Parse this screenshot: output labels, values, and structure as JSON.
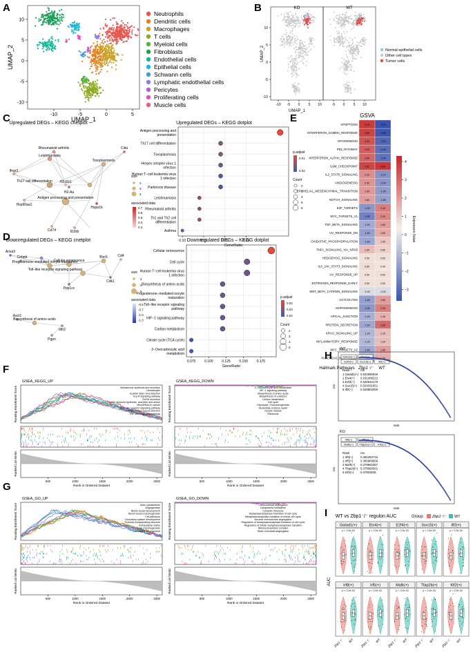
{
  "panel_letters": {
    "A": "A",
    "B": "B",
    "C": "C",
    "D": "D",
    "E": "E",
    "F": "F",
    "G": "G",
    "H": "H",
    "I": "I"
  },
  "colors": {
    "neutrophils": "#E8544E",
    "dendritic": "#E67E22",
    "macrophages": "#C9A227",
    "t_cells": "#8BAA1E",
    "myeloid": "#55B23A",
    "fibroblasts": "#1FA05A",
    "endothelial": "#16B39A",
    "epithelial": "#1AB8D8",
    "schwann": "#3A9BE0",
    "lymphatic": "#8B7FE0",
    "pericytes": "#B05CDC",
    "proliferating": "#E054B8",
    "muscle": "#E65C8C",
    "tumor": "#E04848",
    "other": "#C8C8C8",
    "normal_epi": "#7FC8E8",
    "rank_points": "#2B3FA8",
    "ko": "#E8776E",
    "wt": "#3DBDB0"
  },
  "panel_a": {
    "xlabel": "UMAP_1",
    "ylabel": "UMAP_2",
    "xticks": [
      "-10",
      "-5",
      "0",
      "5"
    ],
    "yticks": [
      "-10",
      "-5",
      "0",
      "5",
      "10"
    ],
    "legend": [
      "Neutrophils",
      "Dendritic cells",
      "Macrophages",
      "T cells",
      "Myeloid cells",
      "Fibroblasts",
      "Endothelial cells",
      "Epithelial cells",
      "Schwann cells",
      "Lymphatic endothelial cells",
      "Pericytes",
      "Proliferating cells",
      "Muscle cells"
    ]
  },
  "panel_b": {
    "titles": [
      "KO",
      "WT"
    ],
    "xlabel": "UMAP_1",
    "ylabel": "UMAP_2",
    "xticks": [
      "-10",
      "-5",
      "0",
      "5",
      "10",
      "-5",
      "0",
      "5",
      "10"
    ],
    "yticks": [
      "-10",
      "-5",
      "0",
      "5",
      "10"
    ],
    "legend": [
      "Normal epithelial cells",
      "Other cell types",
      "Tumor cells"
    ]
  },
  "panel_c": {
    "cnet_title": "Upregulated DEGs – KEGG cnetplot",
    "dot_title": "Upregulated DEGs – KEGG dotplot",
    "cnet_labels": [
      "Rheumatoid arthritis",
      "Leishmaniasis",
      "Toxoplasmosis",
      "Th17 cell differentiation",
      "Antigen processing and presentation",
      "H2-Aa",
      "H2-Eb1",
      "Ciita",
      "Ifngr2",
      "Hsp90aa1",
      "Hspa1b",
      "Cd74",
      "Il18rb"
    ],
    "size_title": "size",
    "size_values": [
      "2",
      "3",
      "4"
    ],
    "assoc_title": "associated data",
    "assoc_values": [
      "0.7",
      "0.6",
      "0.5",
      "0.4",
      "0.3"
    ],
    "dot_padj_title": "p.adjust",
    "dot_padj_values": [
      "0.01",
      "0.02"
    ],
    "dot_count_title": "Count",
    "dot_count_values": [
      "2",
      "3",
      "4",
      "5",
      "6"
    ],
    "xlabel": "GeneRatio",
    "xticks": [
      "0.10",
      "0.15",
      "0.20",
      "0.25"
    ]
  },
  "panel_d": {
    "cnet_title": "Downregulated DEGs – KEGG cnetplot",
    "dot_title": "Downregulated DEGs – KEGG dotplot",
    "cnet_labels": [
      "Anxa3",
      "Cebpb",
      "Progesterone–mediated oocyte maturation",
      "Cellular senescence",
      "Toll–like receptor signaling pathway",
      "Ppp1cc",
      "Cdk1",
      "Cd4",
      "Birc5",
      "Asct1",
      "Biosynthesis of amino acids",
      "Idh2",
      "Pgpn"
    ],
    "size_title": "size",
    "size_values": [
      "2",
      "4",
      "6"
    ],
    "assoc_title": "associated data",
    "assoc_values": [
      "-0.5",
      "-0.7",
      "-1.0",
      "-1.3"
    ],
    "dot_padj_title": "p.adjust",
    "dot_padj_values": [
      "0.02",
      "0.03",
      "0.04"
    ],
    "dot_count_title": "Count",
    "dot_count_values": [
      "2",
      "3",
      "4",
      "5"
    ],
    "xlabel": "GeneRatio",
    "xticks": [
      "0.075",
      "0.100",
      "0.125",
      "0.150",
      "0.175"
    ]
  },
  "panel_e": {
    "title": "GSVA",
    "xlabel": "Hallmark Pathways",
    "columns": [
      "Zbp1⁻/⁻",
      "WT"
    ],
    "legend_title": "Expression Value",
    "legend_ticks": [
      "4",
      "3",
      "2",
      "1",
      "0",
      "−1",
      "−2",
      "−3"
    ]
  },
  "panel_f": {
    "up_title": "GSEA_KEGG_UP",
    "down_title": "GSEA_KEGG_DOWN",
    "ylabel_top": "Running Enrichment Score",
    "ylabel_bottom": "Ranked List Metric",
    "xlabel": "Rank in Ordered Dataset",
    "xticks": [
      "500",
      "1000",
      "1500",
      "2000",
      "2500"
    ],
    "up_legend": [
      "Aldosterone synthesis and secretion",
      "Hematoxylin",
      "Epstein–Barr virus infection",
      "Fcγ-R signaling pathway",
      "GnRH secretion",
      "Growth hormone synthesis, secretion and action",
      "MicroRNAs in cancer",
      "NOD-like receptor signaling pathway",
      "Staphylococcus aureus infection",
      "TNF-beta signaling pathway"
    ],
    "down_legend": [
      "2–Oxocarboxylic acid metabolism",
      "HIF–1 signaling pathway",
      "Biosynthesis of amino acids",
      "Biosynthesis of cofactors",
      "Carbon metabolism",
      "Cell cycle",
      "Glycolysis / Gluconeogenesis",
      "Nucleotide excision repair",
      "Oocyte meiosis",
      "Ribosome"
    ]
  },
  "panel_g": {
    "up_title": "GSEA_GO_UP",
    "down_title": "GSEA_GO_DOWN",
    "ylabel_top": "Running Enrichment Score",
    "ylabel_bottom": "Ranked List Metric",
    "xlabel": "Rank in Ordered Dataset",
    "xticks": [
      "500",
      "1000",
      "1500",
      "2000",
      "2500"
    ],
    "up_legend": [
      "Actin cytoskeleton",
      "Angiogenesis",
      "Blood vessel development",
      "Blood vessel morphogenesis",
      "Cell adhesion",
      "Circulatory system development",
      "External encapsulating structure",
      "Extracellular matrix",
      "Tube morphogenesis",
      "Vasculature development"
    ],
    "down_legend": [
      "Chromosomal segregation",
      "Cytoplasmic translation",
      "Cytosolic ribosome",
      "Metaphase/anaphase transition of cell cycle",
      "Metaphase/anaphase transition of mitotic cell cycle",
      "Nuclear chromosome segregation",
      "Regulation of metaphase/anaphase transition of cell cycle",
      "Regulation of mitotic metaphase/anaphase transition",
      "Ribonucleoprotein complex",
      "Sister chromatid segregation"
    ]
  },
  "panel_h": {
    "wt": {
      "title": "WT",
      "boxes": [
        "Gatad1(+)",
        "Etv4(+)",
        "E2f4(+)",
        "Sox15(+)",
        "Ilf2(+)"
      ],
      "header": [
        "Rank",
        "rss"
      ],
      "rows": [
        [
          "1.Gatad1(+)",
          "0.532890049"
        ],
        [
          "2.Etv4(+)",
          "0.531008212"
        ],
        [
          "3.E2f4(+)",
          "0.530542179"
        ],
        [
          "4.Sox15(+)",
          "0.529331551"
        ],
        [
          "5.Ilf2(+)",
          "0.528802059"
        ]
      ]
    },
    "ko": {
      "title": "KO",
      "boxes": [
        "Irf8(+)",
        "Irf5(+)",
        "Mafk(+)",
        "Tfap2b(+)",
        "Klf2(+)"
      ],
      "header": [
        "Rank",
        "rss"
      ],
      "rows": [
        [
          "1.Irf8(+)",
          "0.381284716"
        ],
        [
          "2.Irf5(+)",
          "0.380909569"
        ],
        [
          "3.Mafk(+)",
          "0.379562357"
        ],
        [
          "4.Tfap2b(+)",
          "0.378660001"
        ],
        [
          "5.Klf2(+)",
          "0.37803535"
        ]
      ]
    },
    "xlabel": "rank",
    "ylabel": "rss"
  },
  "panel_i": {
    "title": "WT vs Zbp1⁻/⁻ regulon AUC",
    "group_label": "Group",
    "groups": [
      "Zbp1⁻/⁻",
      "WT"
    ],
    "ylabel": "AUC",
    "xticklabels": [
      "Zbp1⁻/⁻",
      "WT"
    ],
    "top": [
      {
        "name": "Gatad1(+)",
        "p": "p < 2.2e-16"
      },
      {
        "name": "Etv4(+)",
        "p": "p < 2.2e-16"
      },
      {
        "name": "E2f4(+)",
        "p": "p < 2.2e-16"
      },
      {
        "name": "Sox15(+)",
        "p": "p < 2.2e-16"
      },
      {
        "name": "Ilf2(+)",
        "p": "p < 2.2e-16"
      }
    ],
    "bottom": [
      {
        "name": "Irf8(+)",
        "p": "p < 2.2e-16"
      },
      {
        "name": "Irf5(+)",
        "p": "p < 2.2e-16"
      },
      {
        "name": "Mafk(+)",
        "p": "p < 2.2e-16"
      },
      {
        "name": "Tfap2b(+)",
        "p": "p < 2.2e-16"
      },
      {
        "name": "Klf2(+)",
        "p": "p < 2.2e-16"
      }
    ]
  },
  "chart_data": [
    {
      "type": "scatter",
      "title": "Upregulated DEGs – KEGG dotplot",
      "xlabel": "GeneRatio",
      "categories": [
        "Antigen processing and presentation",
        "Th17 cell differentiation",
        "Toxoplasmosis",
        "Herpes simplex virus 1 infection",
        "Human T−cell leukemia virus 1 infection",
        "Parkinson disease",
        "Leishmaniasis",
        "Rheumatoid arthritis",
        "Th1 and Th2 cell differentiation",
        "Asthma"
      ],
      "gene_ratio": [
        0.33,
        0.19,
        0.19,
        0.19,
        0.19,
        0.19,
        0.14,
        0.14,
        0.14,
        0.1
      ],
      "count": [
        7,
        4,
        4,
        4,
        4,
        4,
        3,
        3,
        3,
        2
      ],
      "p_adjust": [
        0.003,
        0.012,
        0.012,
        0.016,
        0.018,
        0.02,
        0.012,
        0.012,
        0.012,
        0.015
      ],
      "xlim": [
        0.09,
        0.35
      ]
    },
    {
      "type": "scatter",
      "title": "Downregulated DEGs – KEGG dotplot",
      "xlabel": "GeneRatio",
      "categories": [
        "Cellular senescence",
        "Cell cycle",
        "Human T−cell leukemia virus 1 infection",
        "Biosynthesis of amino acids",
        "Progesterone−mediated oocyte maturation",
        "Toll−like receptor signaling pathway",
        "HIF−1 signaling pathway",
        "Carbon metabolism",
        "Citrate cycle (TCA cycle)",
        "2−Oxocarboxylic acid metabolism"
      ],
      "gene_ratio": [
        0.19,
        0.155,
        0.155,
        0.12,
        0.12,
        0.12,
        0.12,
        0.12,
        0.075,
        0.075
      ],
      "count": [
        5,
        4,
        4,
        3,
        3,
        3,
        3,
        3,
        2,
        2
      ],
      "p_adjust": [
        0.01,
        0.035,
        0.035,
        0.035,
        0.035,
        0.035,
        0.035,
        0.035,
        0.045,
        0.045
      ],
      "xlim": [
        0.068,
        0.197
      ]
    },
    {
      "type": "heatmap",
      "title": "GSVA",
      "columns": [
        "Zbp1⁻/⁻",
        "WT"
      ],
      "rows": [
        "APOPTOSIS",
        "INTERFERON_GAMMA_RESPONSE",
        "MYOGENESIS",
        "P53_PATHWAY",
        "INTERFERON_ALPHA_RESPONSE",
        "G2M_CHECKPOINT",
        "IL2_STAT5_SIGNALING",
        "ANGIOGENESIS",
        "EPITHELIAL_MESENCHYMAL_TRANSITION",
        "NOTCH_SIGNALING",
        "E2F_TARGETS",
        "MYC_TARGETS_V1",
        "TGF_BETA_SIGNALING",
        "UV_RESPONSE_DN",
        "OXIDATIVE_PHOSPHORYLATION",
        "TNFA_SIGNALING_VIA_NFKB",
        "HEDGEHOG_SIGNALING",
        "IL6_JAK_STAT3_SIGNALING",
        "UV_RESPONSE_UP",
        "ESTROGEN_RESPONSE_EARLY",
        "WNT_BETA_CATENIN_SIGNALING",
        "GLYCOLYSIS",
        "ADIPOGENESIS",
        "APICAL_JUNCTION",
        "PROTEIN_SECRETION",
        "KRAS_SIGNALING_UP",
        "INFLAMMATORY_RESPONSE",
        "MYC_TARGETS_V2",
        "PANCREAS_BETA_CELLS"
      ],
      "values": [
        [
          3.7,
          -3.7
        ],
        [
          3.6,
          -3.6
        ],
        [
          3.2,
          -3.2
        ],
        [
          3.0,
          -3.0
        ],
        [
          2.9,
          -2.9
        ],
        [
          3.5,
          3.8
        ],
        [
          2.1,
          -2.1
        ],
        [
          2.0,
          -2.0
        ],
        [
          1.9,
          -1.9
        ],
        [
          1.8,
          -1.8
        ],
        [
          -2.0,
          2.4
        ],
        [
          -2.5,
          2.2
        ],
        [
          -1.5,
          1.8
        ],
        [
          -1.8,
          1.6
        ],
        [
          -1.6,
          1.0
        ],
        [
          1.2,
          0.8
        ],
        [
          0.5,
          0.5
        ],
        [
          0.6,
          0.4
        ],
        [
          0.5,
          0.5
        ],
        [
          0.5,
          0.5
        ],
        [
          -0.3,
          -0.3
        ],
        [
          -1.8,
          1.8
        ],
        [
          -2.0,
          2.4
        ],
        [
          -1.4,
          1.4
        ],
        [
          -1.6,
          2.8
        ],
        [
          -1.2,
          1.2
        ],
        [
          -1.2,
          1.2
        ],
        [
          -1.6,
          1.8
        ],
        [
          -1.4,
          1.5
        ]
      ],
      "colorbar": [
        -3.7,
        4.1
      ]
    }
  ]
}
